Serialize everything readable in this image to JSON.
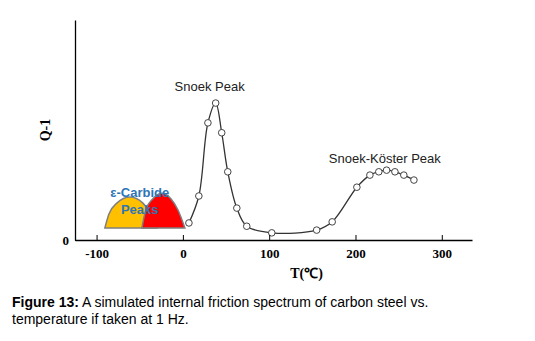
{
  "chart_data": {
    "type": "line",
    "caption": {
      "label": "Figure 13:",
      "text": "A simulated internal friction spectrum of carbon steel vs. temperature if taken at 1 Hz."
    },
    "x_label": "T(℃)",
    "y_label": "Q-1",
    "xlim": [
      -125,
      335
    ],
    "xticks": [
      -100,
      0,
      100,
      200,
      300
    ],
    "ylim": [
      0,
      4
    ],
    "yticks": [
      0
    ],
    "series": [
      {
        "type": "area",
        "color": "#ffc000",
        "x": [
          -90.4,
          -85.8,
          -76.5,
          -61.4,
          -46.3,
          -37.1,
          -30.1
        ],
        "values": [
          0.22,
          0.47,
          0.67,
          0.78,
          0.67,
          0.47,
          0.22
        ]
      },
      {
        "type": "area",
        "color": "#ff0000",
        "x": [
          -47.5,
          -42.9,
          -34.8,
          -24.3,
          -13.9,
          -5.8,
          2.3
        ],
        "values": [
          0.22,
          0.55,
          0.75,
          0.85,
          0.75,
          0.55,
          0.22
        ]
      },
      {
        "type": "line",
        "color": "#333333",
        "marker": "circle",
        "x": [
          7,
          18.5,
          29,
          38,
          45,
          52,
          62.5,
          74,
          103,
          155,
          173,
          201.6,
          216.7,
          227,
          236,
          245.7,
          256,
          267.7
        ],
        "values": [
          0.31,
          0.8,
          2.13,
          2.49,
          1.95,
          1.24,
          0.58,
          0.25,
          0.13,
          0.18,
          0.33,
          0.96,
          1.18,
          1.24,
          1.27,
          1.24,
          1.18,
          1.09
        ]
      }
    ],
    "annotations": [
      {
        "text": "Snoek Peak",
        "x": 31,
        "y": 2.8
      },
      {
        "text": "Snoek-Köster Peak",
        "x": 234,
        "y": 1.5
      },
      {
        "text": [
          "ε-Carbide",
          "Peaks"
        ],
        "x": -50,
        "y": 0.87,
        "color": "#2e75b6"
      }
    ]
  }
}
